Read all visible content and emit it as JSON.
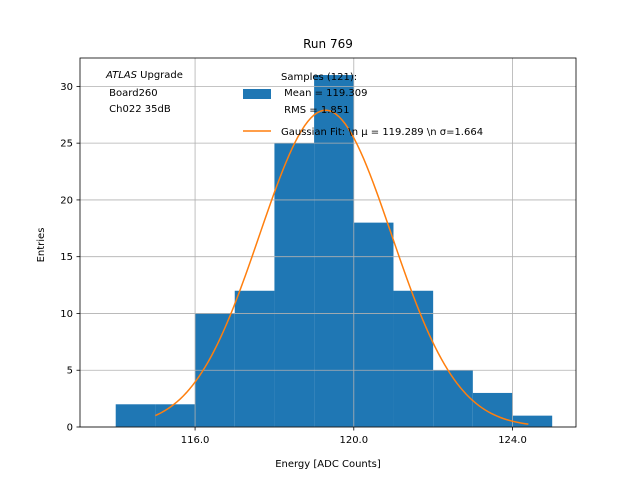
{
  "chart_data": {
    "type": "bar",
    "title": "Run 769",
    "xlabel": "Energy [ADC Counts]",
    "ylabel": "Entries",
    "xlim": [
      113.1,
      125.6
    ],
    "ylim": [
      0,
      32.5
    ],
    "grid": true,
    "xticks": [
      116,
      120,
      124
    ],
    "xtick_labels": [
      "116.0",
      "120.0",
      "124.0"
    ],
    "yticks": [
      0,
      5,
      10,
      15,
      20,
      25,
      30
    ],
    "ytick_labels": [
      "0",
      "5",
      "10",
      "15",
      "20",
      "25",
      "30"
    ],
    "histogram": {
      "name": "Samples (121):\n Mean = 119.309\n RMS = 1.851",
      "color": "#1f77b4",
      "bin_edges": [
        114,
        115,
        116,
        117,
        118,
        119,
        120,
        121,
        122,
        123,
        124,
        125
      ],
      "counts": [
        2,
        2,
        10,
        12,
        25,
        31,
        18,
        12,
        5,
        3,
        1
      ]
    },
    "fit": {
      "name": "Gaussian Fit: \\n $\\mu$ = 119.289 \\n $\\sigma$=1.664",
      "color": "#ff7f0e",
      "mu": 119.289,
      "sigma": 1.664,
      "amplitude": 27.9,
      "x_range": [
        115,
        124.4
      ]
    },
    "legend_position": "top-right",
    "legend_entries": [
      {
        "lines": [
          "Samples (121):",
          " Mean = 119.309",
          " RMS = 1.851"
        ],
        "kind": "patch",
        "color": "#1f77b4"
      },
      {
        "lines": [
          "Gaussian Fit: \\n μ = 119.289 \\n σ=1.664"
        ],
        "kind": "line",
        "color": "#ff7f0e"
      }
    ],
    "annotation": {
      "atlas": "ATLAS",
      "upgrade": " Upgrade",
      "line2": " Board260",
      "line3": " Ch022 35dB"
    }
  }
}
